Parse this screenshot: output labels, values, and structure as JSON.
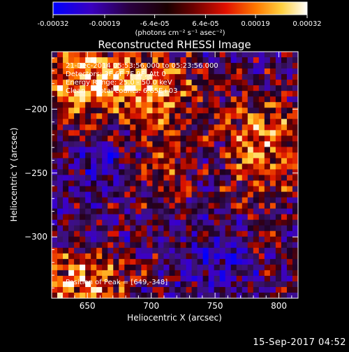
{
  "chart_data": {
    "type": "heatmap",
    "title": "Reconstructed RHESSI Image",
    "xlabel": "Heliocentric X (arcsec)",
    "ylabel": "Heliocentric Y (arcsec)",
    "xlim": [
      622,
      815
    ],
    "ylim": [
      -348,
      -155
    ],
    "xticks": [
      650,
      700,
      750,
      800
    ],
    "yticks": [
      -200,
      -250,
      -300
    ],
    "colorbar": {
      "min": -0.00032,
      "max": 0.00032,
      "tick_labels": [
        "-0.00032",
        "-0.00019",
        "-6.4e-05",
        "6.4e-05",
        "0.00019",
        "0.00032"
      ],
      "unit_label": "(photons cm⁻² s⁻¹ asec⁻²)",
      "colormap": [
        "#0000ff",
        "#4b0082",
        "#000000",
        "#8b0000",
        "#ff4500",
        "#ffa500",
        "#ffff99",
        "#ffffff"
      ]
    },
    "annotations": [
      "21-Dec-2014 05:53:56.000 to 05:23:56.000",
      "Detectors: 3F 6F 7F 9F, Att 0",
      "Energy Range: 25.0 - 50.0 keV",
      "Clean     Total counts: 6.65E+03"
    ],
    "peak_label": "Position of Peak = [649,-348]",
    "grid": false
  },
  "footer_date": "15-Sep-2017 04:52"
}
